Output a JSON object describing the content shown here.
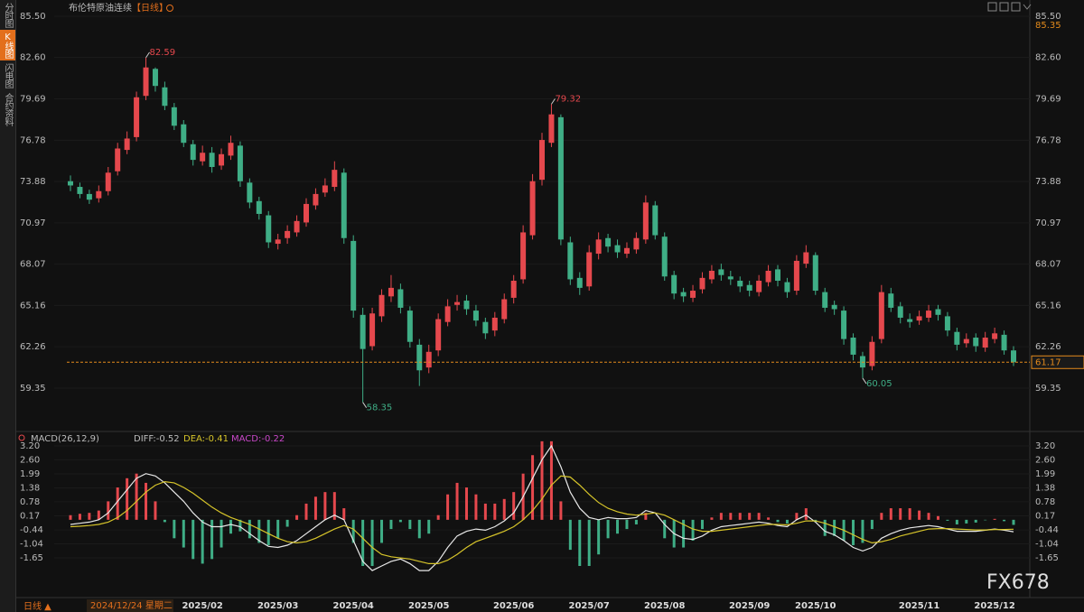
{
  "sidebar": {
    "tabs": [
      "分时图",
      "K线图",
      "闪电图",
      "合约资料"
    ]
  },
  "footer": {
    "period": "日线 ▲",
    "watermark": "FX678"
  },
  "chart_data": [
    {
      "type": "candlestick",
      "title": "布伦特原油连续",
      "period": "【日线】",
      "top_price": 85.35,
      "last_price": 61.17,
      "annotations": [
        82.59,
        79.32,
        58.35,
        60.05
      ],
      "up_color": "#e5484d",
      "down_color": "#3fae86",
      "categories": [
        "2024/12/24 星期二",
        null,
        null,
        null,
        null,
        null,
        null,
        null,
        null,
        null,
        null,
        null,
        null,
        null,
        "2025/02",
        null,
        null,
        null,
        null,
        null,
        null,
        null,
        "2025/03",
        null,
        null,
        null,
        null,
        null,
        null,
        null,
        "2025/04",
        null,
        null,
        null,
        null,
        null,
        null,
        null,
        "2025/05",
        null,
        null,
        null,
        null,
        null,
        null,
        null,
        null,
        "2025/06",
        null,
        null,
        null,
        null,
        null,
        null,
        null,
        "2025/07",
        null,
        null,
        null,
        null,
        null,
        null,
        null,
        "2025/08",
        null,
        null,
        null,
        null,
        null,
        null,
        null,
        null,
        "2025/09",
        null,
        null,
        null,
        null,
        null,
        null,
        "2025/10",
        null,
        null,
        null,
        null,
        null,
        null,
        null,
        null,
        null,
        null,
        "2025/11",
        null,
        null,
        null,
        null,
        null,
        null,
        null,
        "2025/12",
        null,
        null
      ],
      "open": [
        73.9,
        73.5,
        73.0,
        72.7,
        73.2,
        74.6,
        76.1,
        77.0,
        79.9,
        81.8,
        80.5,
        79.1,
        77.9,
        76.5,
        75.3,
        75.9,
        75.0,
        75.7,
        76.4,
        73.8,
        72.5,
        71.5,
        69.5,
        69.9,
        70.3,
        71.0,
        72.2,
        73.1,
        73.5,
        74.5,
        69.7,
        64.5,
        62.3,
        64.4,
        65.8,
        66.3,
        64.8,
        62.4,
        60.8,
        62.0,
        64.0,
        65.2,
        65.5,
        64.8,
        64.0,
        63.4,
        64.2,
        65.7,
        67.0,
        70.1,
        74.0,
        76.6,
        78.4,
        69.6,
        67.1,
        66.5,
        68.8,
        69.9,
        69.4,
        68.8,
        69.1,
        69.8,
        72.2,
        70.0,
        67.3,
        66.1,
        65.7,
        66.3,
        67.0,
        67.7,
        67.2,
        66.9,
        66.6,
        66.1,
        66.8,
        67.7,
        66.8,
        66.2,
        68.1,
        68.7,
        66.1,
        65.2,
        64.8,
        62.9,
        61.6,
        60.9,
        62.8,
        66.0,
        65.1,
        64.2,
        64.1,
        64.3,
        64.9,
        64.4,
        63.3,
        62.5,
        62.9,
        62.2,
        62.8,
        63.1,
        62.0
      ],
      "high": [
        74.3,
        73.8,
        73.3,
        73.6,
        74.9,
        76.6,
        77.4,
        80.2,
        82.59,
        81.9,
        80.9,
        79.4,
        78.2,
        76.8,
        76.4,
        76.3,
        76.2,
        77.1,
        76.7,
        74.1,
        72.8,
        71.8,
        70.2,
        70.8,
        71.5,
        72.7,
        73.4,
        74.1,
        75.3,
        74.8,
        70.1,
        65.0,
        65.0,
        66.3,
        67.3,
        66.7,
        65.1,
        62.8,
        62.4,
        64.6,
        65.6,
        65.9,
        65.9,
        65.2,
        64.3,
        64.7,
        66.0,
        67.3,
        70.8,
        74.4,
        77.3,
        79.32,
        78.6,
        70.0,
        67.5,
        69.4,
        70.3,
        70.2,
        69.8,
        69.6,
        70.3,
        72.9,
        72.5,
        70.3,
        67.6,
        66.4,
        66.6,
        67.5,
        68.0,
        68.1,
        67.6,
        67.2,
        66.9,
        67.3,
        68.0,
        68.0,
        67.1,
        68.7,
        69.4,
        68.9,
        66.4,
        65.5,
        65.1,
        63.2,
        61.9,
        63.0,
        66.6,
        66.4,
        65.4,
        64.6,
        64.8,
        65.2,
        65.2,
        64.7,
        63.6,
        63.2,
        63.2,
        63.3,
        63.6,
        63.4,
        62.3
      ],
      "low": [
        73.2,
        72.7,
        72.3,
        72.4,
        72.9,
        74.3,
        75.8,
        76.7,
        79.6,
        80.2,
        78.9,
        77.5,
        76.3,
        75.0,
        75.0,
        74.5,
        74.7,
        75.4,
        73.5,
        72.0,
        71.2,
        69.2,
        69.1,
        69.5,
        70.0,
        70.7,
        71.9,
        72.8,
        73.2,
        69.5,
        64.3,
        58.35,
        62.0,
        64.0,
        65.4,
        64.6,
        62.2,
        59.5,
        60.4,
        61.6,
        63.7,
        64.8,
        64.5,
        63.7,
        62.8,
        63.0,
        63.9,
        65.3,
        66.7,
        69.8,
        73.6,
        76.3,
        69.4,
        66.6,
        65.9,
        66.2,
        68.4,
        68.9,
        68.5,
        68.5,
        68.8,
        69.5,
        69.8,
        66.9,
        65.6,
        65.4,
        65.4,
        66.0,
        66.7,
        66.9,
        66.6,
        66.1,
        65.8,
        65.8,
        66.5,
        66.5,
        65.7,
        65.9,
        67.8,
        65.9,
        64.7,
        64.5,
        62.4,
        61.3,
        60.05,
        60.6,
        62.5,
        64.7,
        63.9,
        63.6,
        63.8,
        64.0,
        64.1,
        63.0,
        62.0,
        62.2,
        61.9,
        61.9,
        62.5,
        61.7,
        60.9
      ],
      "close": [
        73.6,
        73.0,
        72.6,
        73.2,
        74.5,
        76.2,
        76.9,
        79.8,
        81.9,
        80.6,
        79.2,
        77.8,
        76.6,
        75.4,
        75.9,
        74.9,
        75.8,
        76.6,
        73.9,
        72.4,
        71.6,
        69.6,
        69.8,
        70.4,
        71.1,
        72.3,
        73.0,
        73.6,
        74.7,
        69.9,
        64.8,
        62.1,
        64.6,
        65.9,
        66.4,
        65.0,
        62.6,
        60.6,
        61.9,
        64.2,
        65.1,
        65.4,
        64.9,
        64.1,
        63.2,
        64.3,
        65.6,
        66.9,
        70.3,
        73.9,
        76.8,
        78.6,
        69.8,
        67.0,
        66.4,
        68.9,
        69.8,
        69.3,
        68.9,
        69.2,
        69.9,
        72.4,
        70.1,
        67.2,
        66.0,
        65.8,
        66.2,
        67.1,
        67.6,
        67.3,
        67.0,
        66.5,
        66.2,
        66.9,
        67.6,
        66.9,
        66.1,
        68.3,
        68.9,
        66.2,
        65.0,
        64.9,
        62.8,
        61.7,
        60.8,
        62.6,
        66.1,
        65.0,
        64.3,
        64.0,
        64.4,
        64.8,
        64.5,
        63.4,
        62.4,
        62.8,
        62.3,
        62.9,
        63.2,
        62.0,
        61.17
      ],
      "ylim": [
        56.49,
        85.5
      ],
      "yticks": [
        {
          "value": 85.5,
          "label": "85.50"
        },
        {
          "value": 82.6,
          "label": "82.60"
        },
        79.69,
        76.78,
        73.88,
        70.97,
        68.07,
        65.16,
        62.26,
        59.35
      ]
    },
    {
      "type": "macd",
      "title": "MACD(26,12,9)",
      "legend_labels": [
        "DIFF:-0.52",
        "DEA:-0.41",
        "MACD:-0.22"
      ],
      "ylim": [
        -3.29,
        3.2
      ],
      "yticks": [
        {
          "value": 3.2,
          "label": "3.20"
        },
        {
          "value": 2.6,
          "label": "2.60"
        },
        1.99,
        1.38,
        0.78,
        0.17,
        -0.44,
        -1.04,
        -1.65
      ],
      "series": [
        {
          "name": "DIFF",
          "color": "#e8e8e8",
          "values": [
            -0.2,
            -0.15,
            -0.1,
            0.0,
            0.3,
            0.8,
            1.3,
            1.8,
            2.0,
            1.9,
            1.6,
            1.2,
            0.8,
            0.3,
            -0.1,
            -0.3,
            -0.3,
            -0.2,
            -0.3,
            -0.6,
            -0.9,
            -1.15,
            -1.2,
            -1.1,
            -0.9,
            -0.6,
            -0.3,
            0.0,
            0.2,
            0.0,
            -0.9,
            -1.8,
            -2.2,
            -2.0,
            -1.8,
            -1.7,
            -1.9,
            -2.2,
            -2.2,
            -1.8,
            -1.2,
            -0.7,
            -0.5,
            -0.4,
            -0.45,
            -0.3,
            -0.05,
            0.3,
            1.0,
            1.8,
            2.6,
            3.2,
            2.3,
            1.2,
            0.5,
            0.1,
            0.0,
            0.1,
            0.05,
            0.05,
            0.1,
            0.4,
            0.3,
            -0.2,
            -0.6,
            -0.8,
            -0.85,
            -0.7,
            -0.45,
            -0.3,
            -0.25,
            -0.2,
            -0.15,
            -0.1,
            -0.15,
            -0.25,
            -0.3,
            0.0,
            0.2,
            -0.1,
            -0.5,
            -0.65,
            -0.9,
            -1.2,
            -1.35,
            -1.2,
            -0.8,
            -0.6,
            -0.45,
            -0.35,
            -0.3,
            -0.25,
            -0.3,
            -0.4,
            -0.5,
            -0.5,
            -0.5,
            -0.45,
            -0.4,
            -0.45,
            -0.52
          ]
        },
        {
          "name": "DEA",
          "color": "#d6c42a",
          "values": [
            -0.3,
            -0.28,
            -0.25,
            -0.2,
            -0.1,
            0.1,
            0.4,
            0.8,
            1.2,
            1.5,
            1.65,
            1.6,
            1.4,
            1.15,
            0.85,
            0.55,
            0.3,
            0.1,
            -0.05,
            -0.2,
            -0.4,
            -0.6,
            -0.8,
            -0.95,
            -1.0,
            -0.95,
            -0.8,
            -0.6,
            -0.4,
            -0.25,
            -0.4,
            -0.8,
            -1.2,
            -1.5,
            -1.6,
            -1.65,
            -1.7,
            -1.8,
            -1.9,
            -1.9,
            -1.75,
            -1.5,
            -1.2,
            -0.95,
            -0.8,
            -0.65,
            -0.5,
            -0.3,
            0.0,
            0.4,
            0.9,
            1.5,
            1.9,
            1.85,
            1.5,
            1.1,
            0.75,
            0.5,
            0.35,
            0.25,
            0.2,
            0.25,
            0.3,
            0.2,
            0.0,
            -0.2,
            -0.4,
            -0.5,
            -0.5,
            -0.45,
            -0.4,
            -0.35,
            -0.3,
            -0.25,
            -0.2,
            -0.2,
            -0.22,
            -0.15,
            -0.05,
            -0.05,
            -0.15,
            -0.3,
            -0.45,
            -0.65,
            -0.85,
            -1.0,
            -0.95,
            -0.85,
            -0.7,
            -0.6,
            -0.5,
            -0.4,
            -0.38,
            -0.38,
            -0.4,
            -0.42,
            -0.44,
            -0.44,
            -0.42,
            -0.42,
            -0.41
          ]
        },
        {
          "name": "MACD",
          "color": "#c847c8",
          "values": [
            0.2,
            0.26,
            0.3,
            0.4,
            0.8,
            1.4,
            1.8,
            2.0,
            1.6,
            0.8,
            -0.1,
            -0.8,
            -1.2,
            -1.7,
            -1.9,
            -1.7,
            -1.2,
            -0.6,
            -0.5,
            -0.8,
            -1.0,
            -1.1,
            -0.8,
            -0.3,
            0.2,
            0.7,
            1.0,
            1.2,
            1.2,
            0.5,
            -1.0,
            -2.0,
            -2.0,
            -1.0,
            -0.4,
            -0.1,
            -0.4,
            -0.8,
            -0.6,
            0.2,
            1.1,
            1.6,
            1.4,
            1.1,
            0.7,
            0.7,
            0.9,
            1.2,
            2.0,
            2.8,
            3.4,
            3.4,
            0.8,
            -1.3,
            -2.0,
            -2.0,
            -1.5,
            -0.8,
            -0.6,
            -0.4,
            -0.2,
            0.3,
            0.0,
            -0.8,
            -1.2,
            -1.2,
            -0.9,
            -0.4,
            0.1,
            0.3,
            0.3,
            0.3,
            0.3,
            0.3,
            0.1,
            -0.1,
            -0.16,
            0.3,
            0.5,
            -0.1,
            -0.7,
            -0.7,
            -0.9,
            -1.1,
            -1.0,
            -0.4,
            0.3,
            0.5,
            0.5,
            0.5,
            0.4,
            0.3,
            0.16,
            -0.04,
            -0.2,
            -0.16,
            -0.12,
            -0.02,
            0.04,
            -0.06,
            -0.22
          ]
        }
      ]
    }
  ]
}
